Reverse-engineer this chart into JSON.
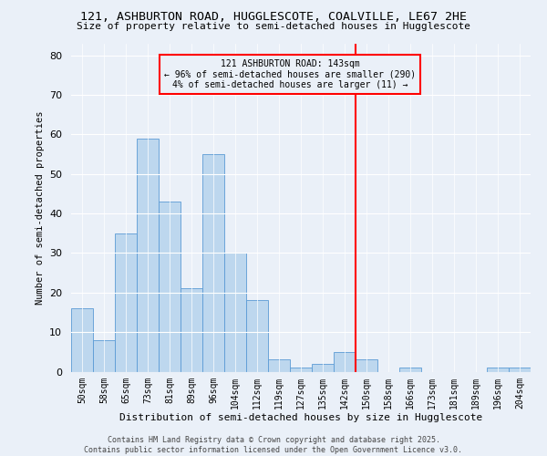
{
  "title": "121, ASHBURTON ROAD, HUGGLESCOTE, COALVILLE, LE67 2HE",
  "subtitle": "Size of property relative to semi-detached houses in Hugglescote",
  "xlabel": "Distribution of semi-detached houses by size in Hugglescote",
  "ylabel": "Number of semi-detached properties",
  "categories": [
    "50sqm",
    "58sqm",
    "65sqm",
    "73sqm",
    "81sqm",
    "89sqm",
    "96sqm",
    "104sqm",
    "112sqm",
    "119sqm",
    "127sqm",
    "135sqm",
    "142sqm",
    "150sqm",
    "158sqm",
    "166sqm",
    "173sqm",
    "181sqm",
    "189sqm",
    "196sqm",
    "204sqm"
  ],
  "values": [
    16,
    8,
    35,
    59,
    43,
    21,
    55,
    30,
    18,
    3,
    1,
    2,
    5,
    3,
    0,
    1,
    0,
    0,
    0,
    1,
    1
  ],
  "bar_color": "#bdd7ee",
  "bar_edge_color": "#5b9bd5",
  "vline_color": "red",
  "annotation_title": "121 ASHBURTON ROAD: 143sqm",
  "annotation_line1": "← 96% of semi-detached houses are smaller (290)",
  "annotation_line2": "4% of semi-detached houses are larger (11) →",
  "annotation_box_color": "red",
  "ylim": [
    0,
    83
  ],
  "yticks": [
    0,
    10,
    20,
    30,
    40,
    50,
    60,
    70,
    80
  ],
  "background_color": "#eaf0f8",
  "footer1": "Contains HM Land Registry data © Crown copyright and database right 2025.",
  "footer2": "Contains public sector information licensed under the Open Government Licence v3.0."
}
